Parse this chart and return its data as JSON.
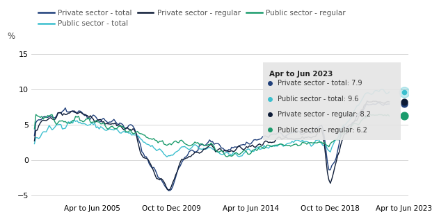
{
  "ylabel": "%",
  "ylim": [
    -6,
    16
  ],
  "yticks": [
    -5,
    0,
    5,
    10,
    15
  ],
  "legend_labels": [
    "Private sector - total",
    "Public sector - total",
    "Private sector - regular",
    "Public sector - regular"
  ],
  "line_colors": [
    "#1f3f7a",
    "#3bbfce",
    "#0d1b36",
    "#1a9b6c"
  ],
  "annotation_title": "Apr to Jun 2023",
  "annotation_colors": [
    "#1f3f7a",
    "#3bbfce",
    "#0d1b36",
    "#1a9b6c"
  ],
  "annotation_items": [
    "Private sector - total: 7.9",
    "Public sector - total: 9.6",
    "Private sector - regular: 8.2",
    "Public sector - regular: 6.2"
  ],
  "xtick_labels": [
    "Apr to Jun 2005",
    "Oct to Dec 2009",
    "Apr to Jun 2014",
    "Oct to Dec 2018",
    "Apr to Jun 2023"
  ],
  "background_color": "#ffffff",
  "grid_color": "#d0d0d0",
  "final_values": [
    7.9,
    9.6,
    8.2,
    6.2
  ]
}
